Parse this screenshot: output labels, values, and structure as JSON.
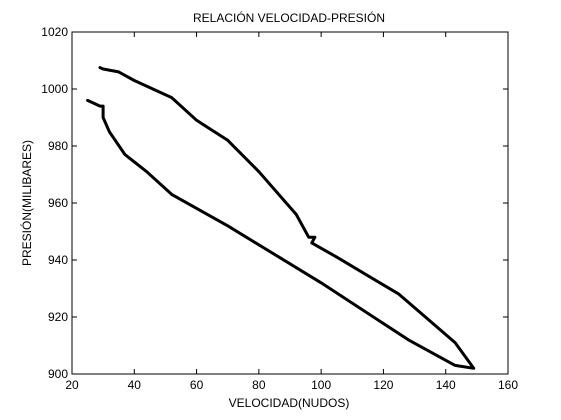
{
  "chart_data": {
    "type": "line",
    "title": "RELACIÓN VELOCIDAD-PRESIÓN",
    "xlabel": "VELOCIDAD(NUDOS)",
    "ylabel": "PRESIÓN(MILIBARES)",
    "xlim": [
      20,
      160
    ],
    "ylim": [
      900,
      1020
    ],
    "xticks": [
      20,
      40,
      60,
      80,
      100,
      120,
      140,
      160
    ],
    "yticks": [
      900,
      920,
      940,
      960,
      980,
      1000,
      1020
    ],
    "grid": false,
    "legend": "none",
    "line_color": "#000000",
    "series": [
      {
        "x": [
          29,
          30,
          35,
          40,
          52,
          60,
          70,
          80,
          92,
          96,
          98,
          97,
          105,
          125,
          143,
          149,
          143,
          128,
          100,
          70,
          52,
          44,
          37,
          32,
          30,
          30,
          29,
          25
        ],
        "y": [
          1007.5,
          1007,
          1006,
          1003,
          997,
          989,
          982,
          971,
          956,
          948,
          948,
          946,
          941,
          928,
          911,
          902,
          903,
          912,
          932,
          952,
          963,
          971,
          977,
          985,
          990,
          994,
          994,
          996
        ]
      }
    ]
  }
}
